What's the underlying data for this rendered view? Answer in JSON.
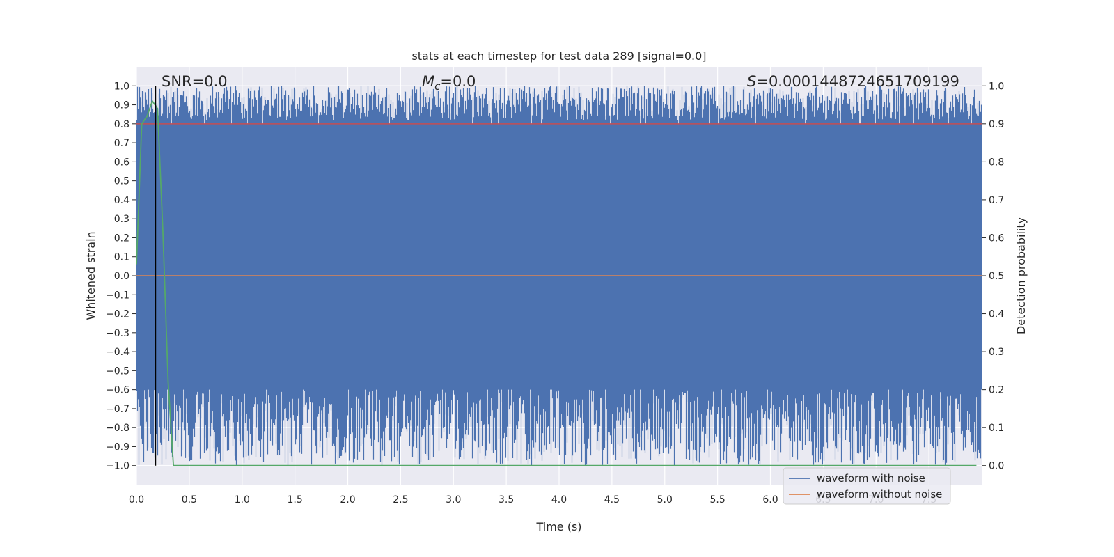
{
  "chart_data": {
    "type": "line",
    "title": "stats at each timestep for test data 289 [signal=0.0]",
    "xlabel": "Time (s)",
    "ylabel": "Whitened strain",
    "ylabel_right": "Detection probability",
    "xlim": [
      0.0,
      8.0
    ],
    "ylim": [
      -1.1,
      1.1
    ],
    "ylim_right": [
      -0.05,
      1.05
    ],
    "x_ticks": [
      "0.0",
      "0.5",
      "1.0",
      "1.5",
      "2.0",
      "2.5",
      "3.0",
      "3.5",
      "4.0",
      "4.5",
      "5.0",
      "5.5",
      "6.0",
      "6.5",
      "7.0",
      "7.5"
    ],
    "y_ticks": [
      "1.0",
      "0.9",
      "0.8",
      "0.7",
      "0.6",
      "0.5",
      "0.4",
      "0.3",
      "0.2",
      "0.1",
      "0.0",
      "−0.1",
      "−0.2",
      "−0.3",
      "−0.4",
      "−0.5",
      "−0.6",
      "−0.7",
      "−0.8",
      "−0.9",
      "−1.0"
    ],
    "y_ticks_right": [
      "1.0",
      "0.9",
      "0.8",
      "0.7",
      "0.6",
      "0.5",
      "0.4",
      "0.3",
      "0.2",
      "0.1",
      "0.0"
    ],
    "grid": true,
    "legend_position": "bottom-right",
    "annotations": {
      "snr": "SNR=0.0",
      "mc_symbol": "M",
      "mc_subscript": "c",
      "mc_value": "=0.0",
      "s_symbol": "S",
      "s_value": "=0.0001448724651709199"
    },
    "series": [
      {
        "name": "waveform with noise",
        "color": "#4c72b0",
        "kind": "noise",
        "sampling_rate_hz": 2048,
        "y_range": [
          -1.0,
          1.0
        ]
      },
      {
        "name": "waveform without noise",
        "color": "#dd8452",
        "kind": "constant",
        "y": 0.0
      },
      {
        "color": "#55a868",
        "axis": "right",
        "x": [
          0.0,
          0.05,
          0.1,
          0.15,
          0.2,
          0.25,
          0.3,
          0.35,
          0.4,
          8.0
        ],
        "y": [
          0.53,
          0.9,
          0.92,
          0.96,
          0.94,
          0.62,
          0.22,
          0.0,
          0.0,
          0.0
        ]
      },
      {
        "color": "#c44e52",
        "kind": "threshold",
        "axis": "right",
        "y": 0.9
      },
      {
        "color": "#000000",
        "kind": "vertical_marker",
        "x": 0.18
      }
    ]
  },
  "colors": {
    "plot_background": "#eaeaf2",
    "grid": "#ffffff",
    "noise": "#4c72b0",
    "clean": "#dd8452",
    "probability": "#55a868",
    "threshold": "#c44e52",
    "marker": "#000000"
  }
}
